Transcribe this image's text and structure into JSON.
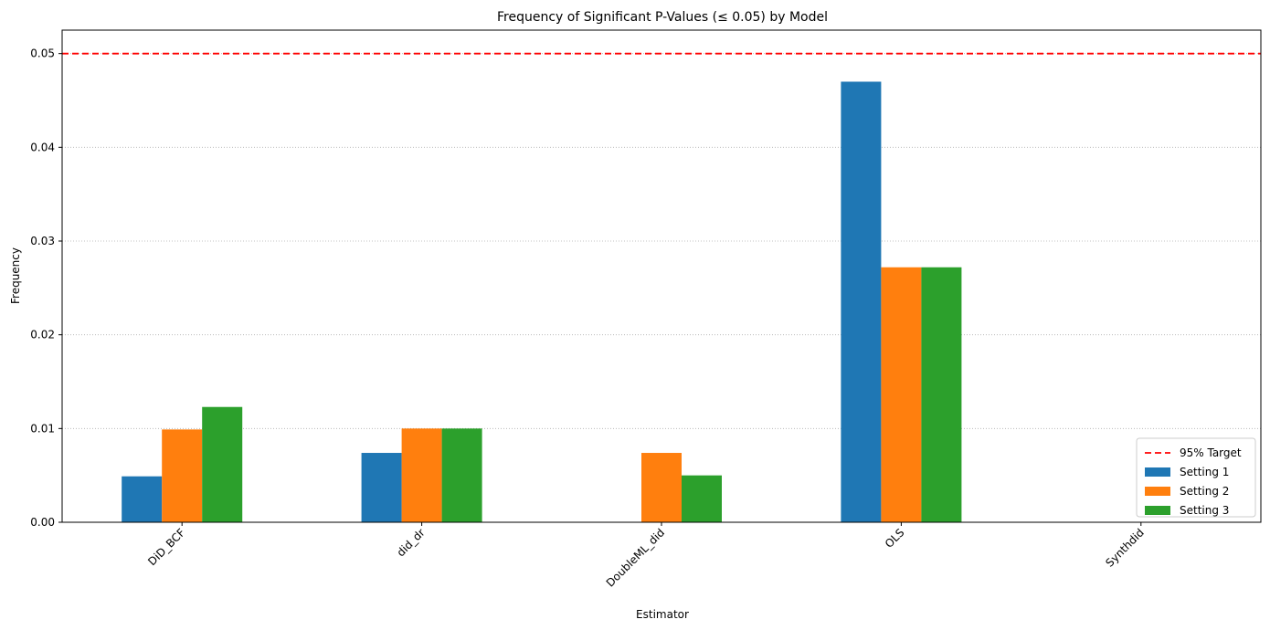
{
  "chart_data": {
    "type": "bar",
    "title": "Frequency of Significant P-Values (≤ 0.05) by Model",
    "xlabel": "Estimator",
    "ylabel": "Frequency",
    "categories": [
      "DiD_BCF",
      "did_dr",
      "DoubleML_did",
      "OLS",
      "Synthdid"
    ],
    "series": [
      {
        "name": "Setting 1",
        "color": "#1f77b4",
        "values": [
          0.0049,
          0.0074,
          0.0,
          0.047,
          0.0
        ]
      },
      {
        "name": "Setting 2",
        "color": "#ff7f0e",
        "values": [
          0.0099,
          0.01,
          0.0074,
          0.0272,
          0.0
        ]
      },
      {
        "name": "Setting 3",
        "color": "#2ca02c",
        "values": [
          0.0123,
          0.01,
          0.005,
          0.0272,
          0.0
        ]
      }
    ],
    "reference_line": {
      "label": "95% Target",
      "value": 0.05,
      "color": "#ff0000",
      "style": "dashed"
    },
    "ylim": [
      0,
      0.0525
    ],
    "yticks": [
      0.0,
      0.01,
      0.02,
      0.03,
      0.04,
      0.05
    ],
    "ytick_labels": [
      "0.00",
      "0.01",
      "0.02",
      "0.03",
      "0.04",
      "0.05"
    ],
    "grid": "y-dotted",
    "legend_position": "lower-right"
  }
}
